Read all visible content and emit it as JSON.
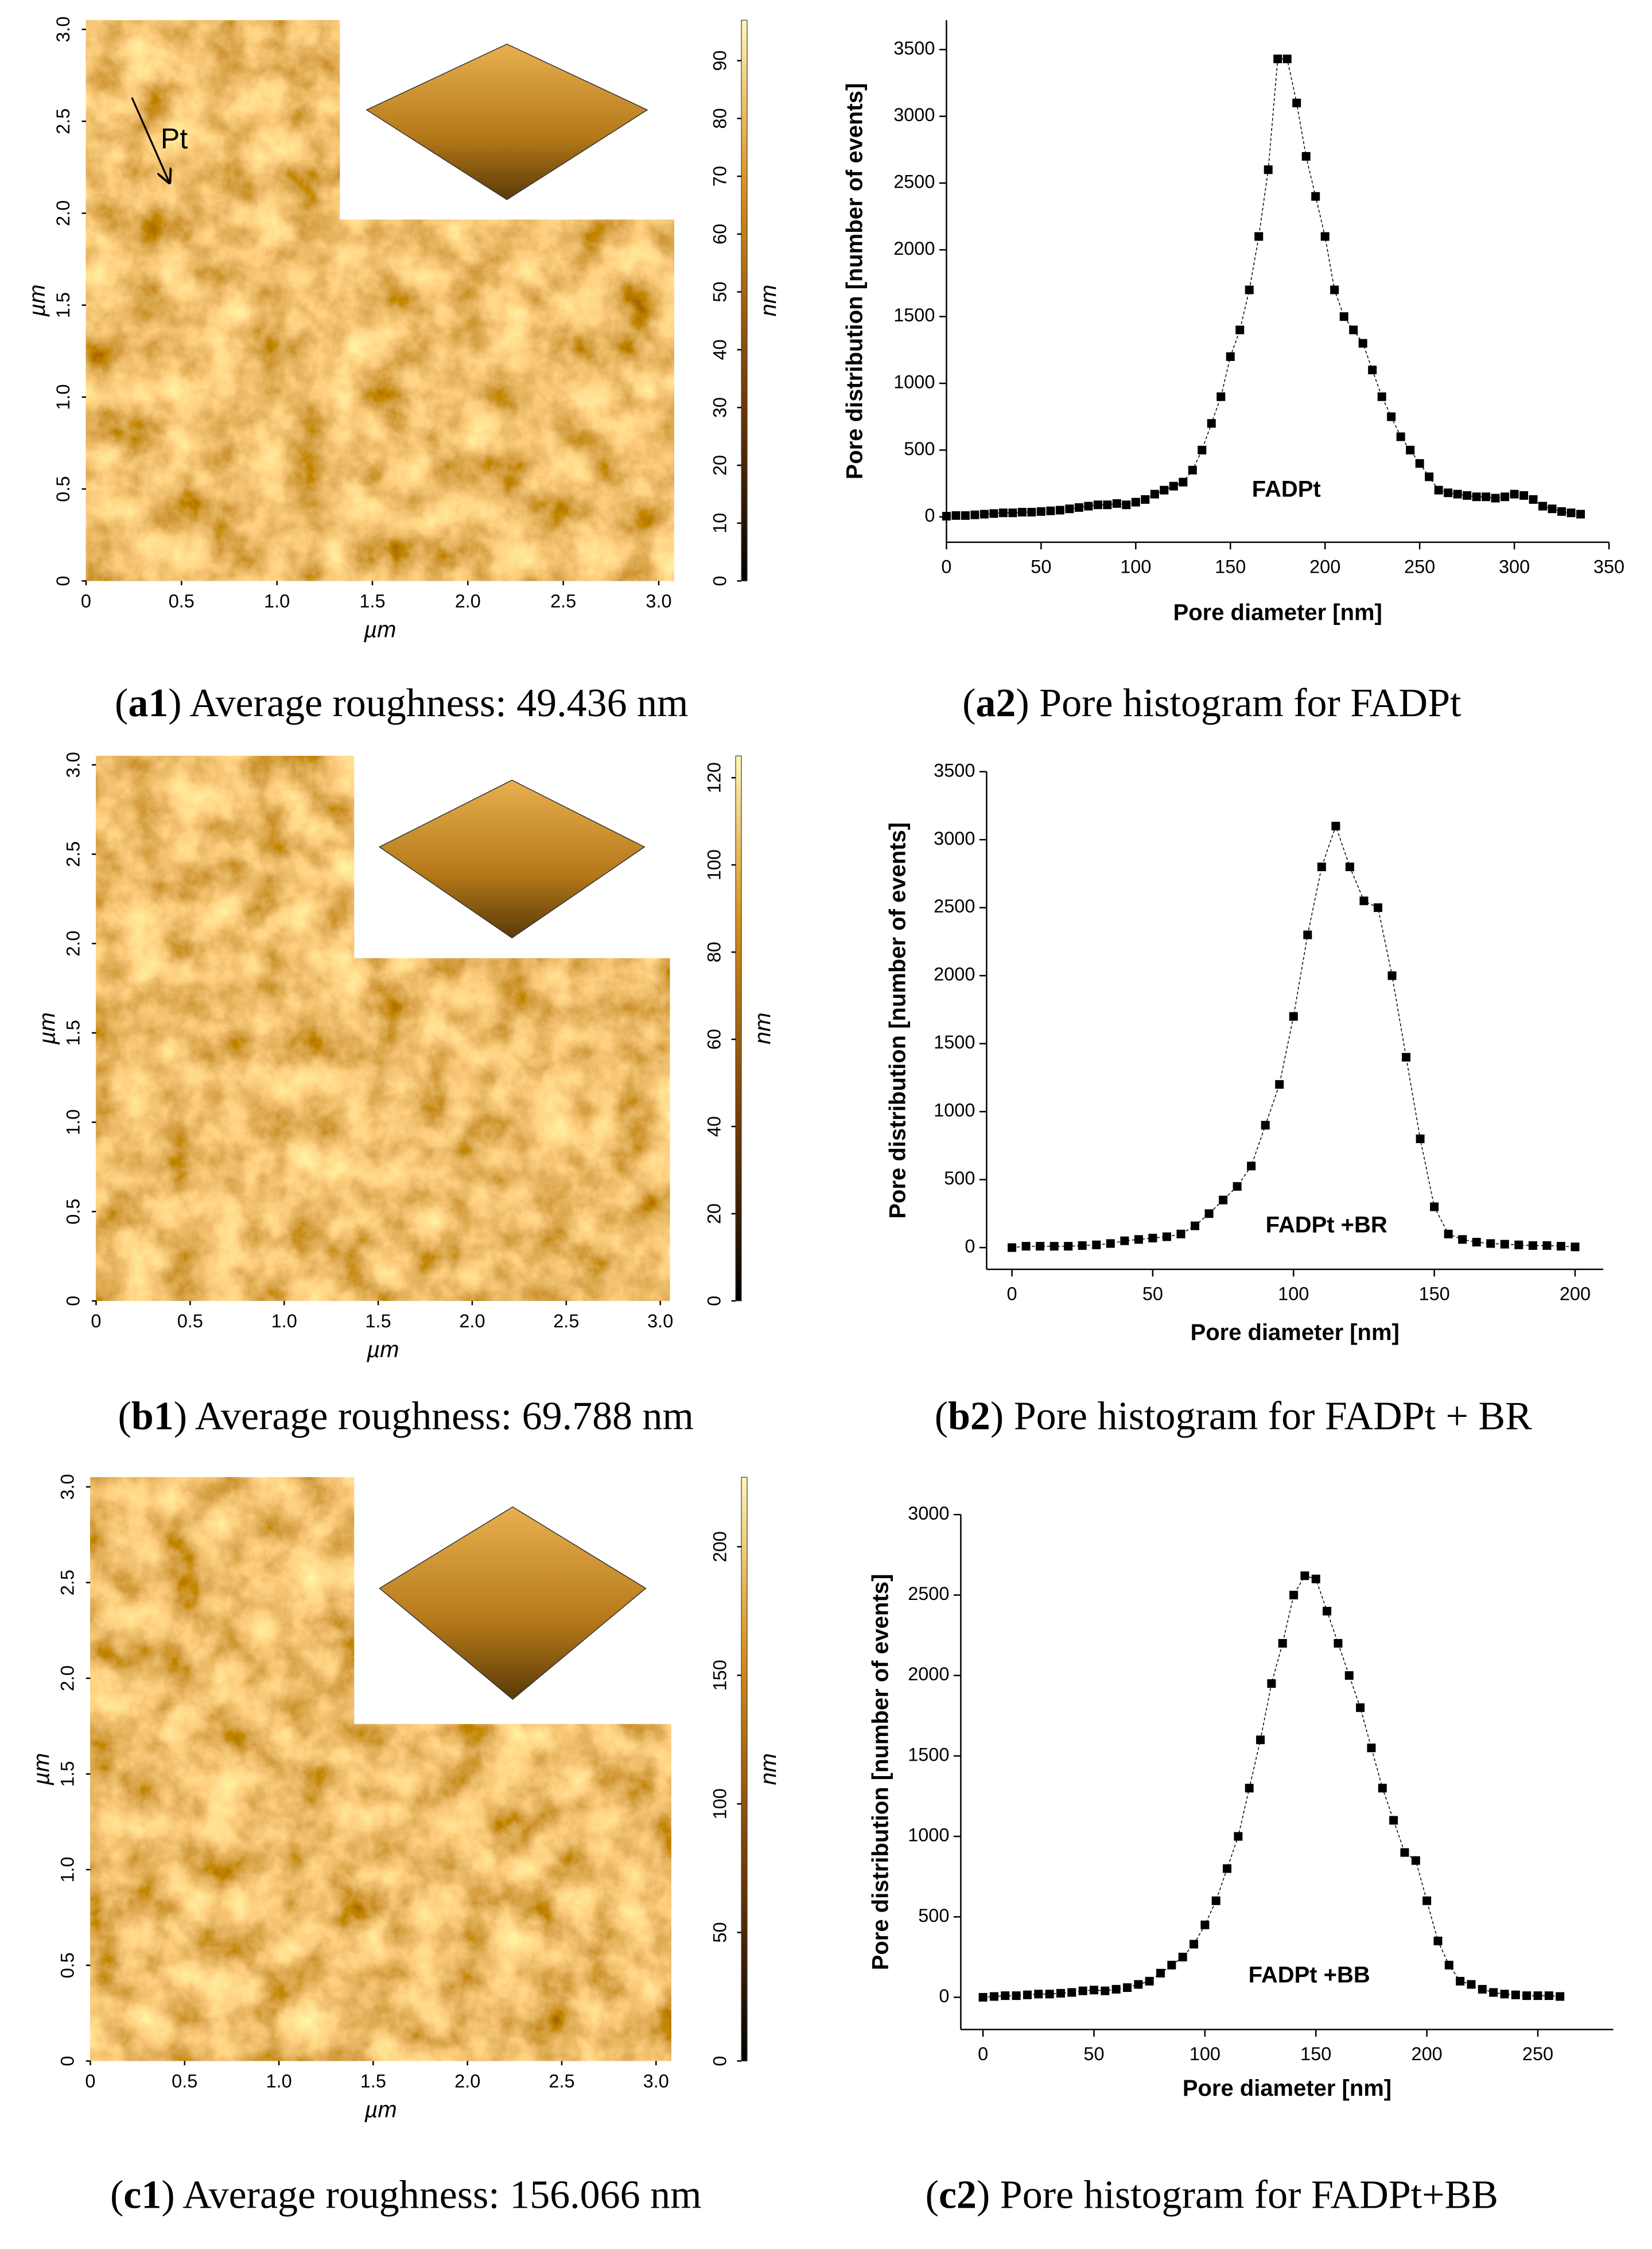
{
  "afm": [
    {
      "xlim": [
        0,
        3.08
      ],
      "ylim": [
        0,
        3.05
      ],
      "clim": [
        0,
        97
      ],
      "xticks": [
        0,
        0.5,
        {
          "value": 1,
          "label": "1.0"
        },
        1.5,
        {
          "value": 2,
          "label": "2.0"
        },
        2.5,
        {
          "value": 3,
          "label": "3.0"
        }
      ],
      "yticks": [
        0,
        0.5,
        {
          "value": 1,
          "label": "1.0"
        },
        1.5,
        {
          "value": 2,
          "label": "2.0"
        },
        2.5,
        {
          "value": 3,
          "label": "3.0"
        }
      ],
      "cticks": [
        0,
        10,
        20,
        30,
        40,
        50,
        60,
        70,
        80,
        90
      ],
      "xlabel": "µm",
      "ylabel": "µm",
      "clabel": "nm",
      "annotation": "Pt",
      "caption": [
        "(",
        "a1",
        ") Average roughness: 49.436 nm"
      ]
    },
    {
      "xlim": [
        0,
        3.05
      ],
      "ylim": [
        0,
        3.05
      ],
      "clim": [
        0,
        125
      ],
      "xticks": [
        0,
        0.5,
        {
          "value": 1,
          "label": "1.0"
        },
        1.5,
        {
          "value": 2,
          "label": "2.0"
        },
        2.5,
        {
          "value": 3,
          "label": "3.0"
        }
      ],
      "yticks": [
        0,
        0.5,
        {
          "value": 1,
          "label": "1.0"
        },
        1.5,
        {
          "value": 2,
          "label": "2.0"
        },
        2.5,
        {
          "value": 3,
          "label": "3.0"
        }
      ],
      "cticks": [
        0,
        20,
        40,
        60,
        80,
        100,
        120
      ],
      "xlabel": "µm",
      "ylabel": "µm",
      "clabel": "nm",
      "caption": [
        "(",
        "b1",
        ") Average roughness: 69.788 nm"
      ]
    },
    {
      "xlim": [
        0,
        3.08
      ],
      "ylim": [
        0,
        3.05
      ],
      "clim": [
        0,
        227
      ],
      "xticks": [
        0,
        0.5,
        {
          "value": 1,
          "label": "1.0"
        },
        1.5,
        {
          "value": 2,
          "label": "2.0"
        },
        2.5,
        {
          "value": 3,
          "label": "3.0"
        }
      ],
      "yticks": [
        0,
        0.5,
        {
          "value": 1,
          "label": "1.0"
        },
        1.5,
        {
          "value": 2,
          "label": "2.0"
        },
        2.5,
        {
          "value": 3,
          "label": "3.0"
        }
      ],
      "cticks": [
        0,
        50,
        100,
        150,
        200
      ],
      "xlabel": "µm",
      "ylabel": "µm",
      "clabel": "nm",
      "caption": [
        "(",
        "c1",
        ") Average roughness: 156.066 nm"
      ]
    }
  ],
  "chart_data": [
    {
      "type": "scatter",
      "color": "#000000",
      "xlabel": "Pore diameter [nm]",
      "ylabel": "Pore distribution [number of events]",
      "annotation": "FADPt",
      "xlim": [
        0,
        350
      ],
      "ylim": [
        -190,
        3720
      ],
      "xticks": [
        0,
        50,
        100,
        150,
        200,
        250,
        300,
        350
      ],
      "yticks": [
        0,
        500,
        1000,
        1500,
        2000,
        2500,
        3000,
        3500
      ],
      "x": [
        0,
        5,
        10,
        15,
        20,
        25,
        30,
        35,
        40,
        45,
        50,
        55,
        60,
        65,
        70,
        75,
        80,
        85,
        90,
        95,
        100,
        105,
        110,
        115,
        120,
        125,
        130,
        135,
        140,
        145,
        150,
        155,
        160,
        165,
        170,
        175,
        180,
        185,
        190,
        195,
        200,
        205,
        210,
        215,
        220,
        225,
        230,
        235,
        240,
        245,
        250,
        255,
        260,
        265,
        270,
        275,
        280,
        285,
        290,
        295,
        300,
        305,
        310,
        315,
        320,
        325,
        330,
        335
      ],
      "values": [
        5,
        10,
        10,
        15,
        20,
        25,
        30,
        30,
        35,
        35,
        40,
        45,
        50,
        60,
        70,
        80,
        90,
        90,
        100,
        90,
        110,
        130,
        170,
        200,
        230,
        260,
        350,
        500,
        700,
        900,
        1200,
        1400,
        1700,
        2100,
        2600,
        3430,
        3430,
        3100,
        2700,
        2400,
        2100,
        1700,
        1500,
        1400,
        1300,
        1100,
        900,
        750,
        600,
        500,
        400,
        300,
        200,
        180,
        170,
        160,
        150,
        150,
        140,
        150,
        170,
        160,
        130,
        80,
        60,
        40,
        30,
        20
      ],
      "caption": [
        "(",
        "a2",
        ") Pore histogram for FADPt"
      ]
    },
    {
      "type": "scatter",
      "color": "#000000",
      "xlabel": "Pore diameter [nm]",
      "ylabel": "Pore distribution [number of events]",
      "annotation": "FADPt +BR",
      "xlim": [
        -9,
        210
      ],
      "ylim": [
        -160,
        3500
      ],
      "xticks": [
        0,
        50,
        100,
        150,
        200
      ],
      "yticks": [
        0,
        500,
        1000,
        1500,
        2000,
        2500,
        3000,
        3500
      ],
      "x": [
        0,
        5,
        10,
        15,
        20,
        25,
        30,
        35,
        40,
        45,
        50,
        55,
        60,
        65,
        70,
        75,
        80,
        85,
        90,
        95,
        100,
        105,
        110,
        115,
        120,
        125,
        130,
        135,
        140,
        145,
        150,
        155,
        160,
        165,
        170,
        175,
        180,
        185,
        190,
        195,
        200
      ],
      "values": [
        0,
        10,
        10,
        10,
        10,
        15,
        20,
        30,
        50,
        60,
        70,
        80,
        100,
        160,
        250,
        350,
        450,
        600,
        900,
        1200,
        1700,
        2300,
        2800,
        3100,
        2800,
        2550,
        2500,
        2000,
        1400,
        800,
        300,
        100,
        60,
        40,
        30,
        25,
        20,
        15,
        15,
        10,
        5
      ],
      "caption": [
        "(",
        "b2",
        ") Pore histogram for FADPt + BR"
      ]
    },
    {
      "type": "scatter",
      "color": "#000000",
      "xlabel": "Pore diameter [nm]",
      "ylabel": "Pore distribution [number of events]",
      "annotation": "FADPt +BB",
      "xlim": [
        -10,
        284
      ],
      "ylim": [
        -200,
        3000
      ],
      "xticks": [
        0,
        50,
        100,
        150,
        200,
        250
      ],
      "yticks": [
        0,
        500,
        1000,
        1500,
        2000,
        2500,
        3000
      ],
      "x": [
        0,
        5,
        10,
        15,
        20,
        25,
        30,
        35,
        40,
        45,
        50,
        55,
        60,
        65,
        70,
        75,
        80,
        85,
        90,
        95,
        100,
        105,
        110,
        115,
        120,
        125,
        130,
        135,
        140,
        145,
        150,
        155,
        160,
        165,
        170,
        175,
        180,
        185,
        190,
        195,
        200,
        205,
        210,
        215,
        220,
        225,
        230,
        235,
        240,
        245,
        250,
        255,
        260
      ],
      "values": [
        0,
        5,
        10,
        10,
        15,
        20,
        20,
        25,
        30,
        40,
        45,
        40,
        50,
        60,
        80,
        100,
        150,
        200,
        250,
        330,
        450,
        600,
        800,
        1000,
        1300,
        1600,
        1950,
        2200,
        2500,
        2620,
        2600,
        2400,
        2200,
        2000,
        1800,
        1550,
        1300,
        1100,
        900,
        850,
        600,
        350,
        200,
        100,
        80,
        50,
        30,
        20,
        15,
        10,
        10,
        10,
        5
      ],
      "caption": [
        "(",
        "c2",
        ") Pore histogram for FADPt+BB"
      ]
    }
  ]
}
